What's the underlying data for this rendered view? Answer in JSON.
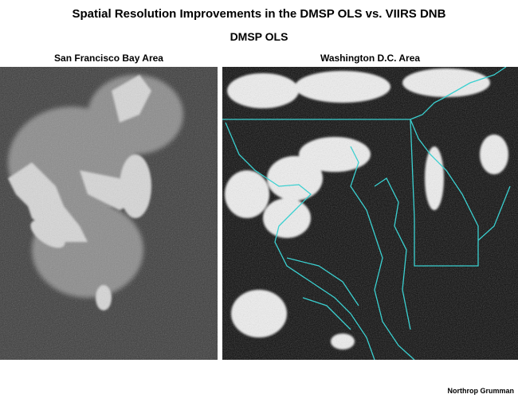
{
  "header": {
    "title": "Spatial Resolution Improvements in the DMSP OLS vs. VIIRS DNB",
    "subtitle": "DMSP OLS"
  },
  "panels": [
    {
      "label": "San Francisco Bay Area"
    },
    {
      "label": "Washington D.C. Area"
    }
  ],
  "footer": {
    "credit": "Northrop Grumman"
  }
}
